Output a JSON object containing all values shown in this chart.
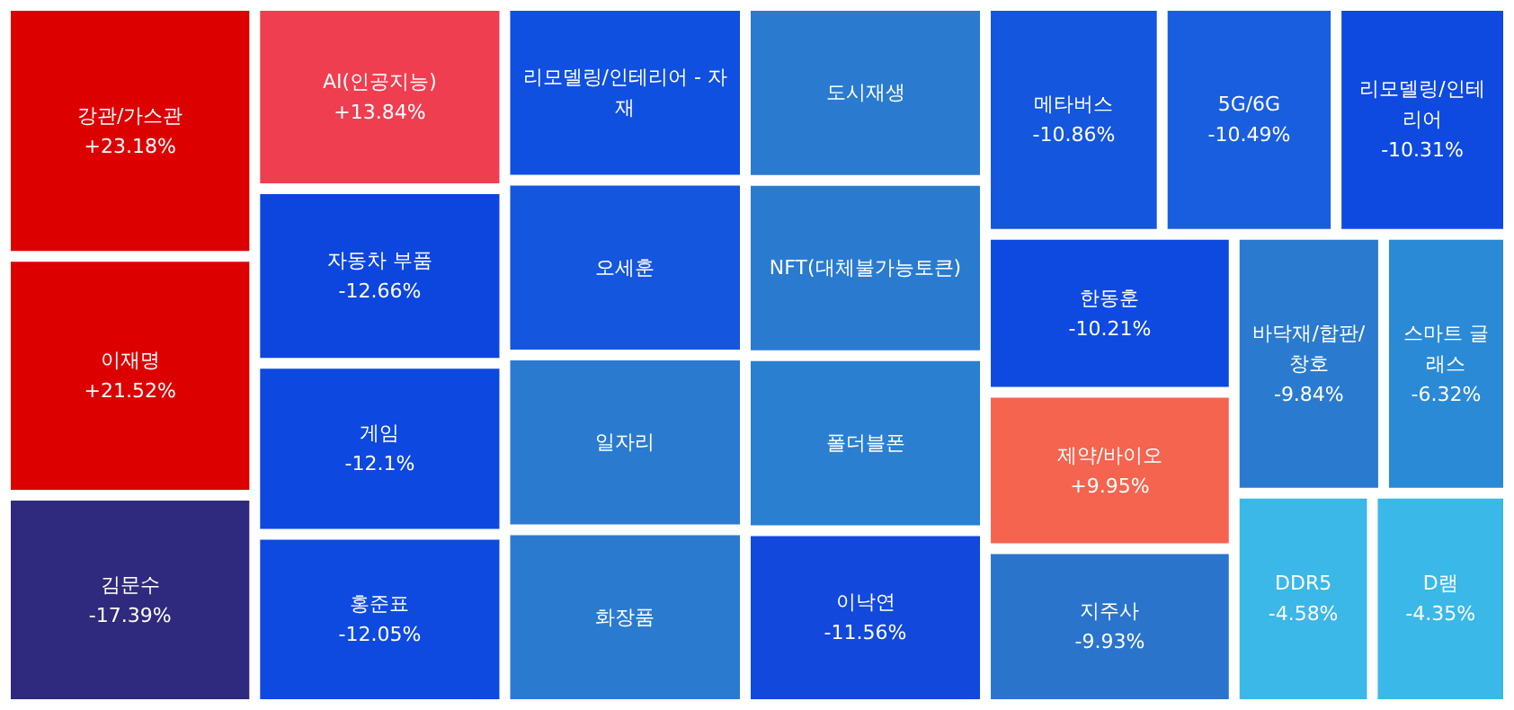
{
  "chart_data": {
    "type": "other",
    "categories": [
      "강관/가스관",
      "이재명",
      "AI(인공지능)",
      "제약/바이오",
      "DDR5",
      "D램",
      "스마트 글래스",
      "폴더블폰",
      "NFT(대체불가능토큰)",
      "도시재생",
      "화장품",
      "일자리",
      "바닥재/합판/창호",
      "지주사",
      "오세훈",
      "5G/6G",
      "메타버스",
      "이낙연",
      "리모델링/인테리어 - 자재",
      "한동훈",
      "리모델링/인테리어",
      "홍준표",
      "게임",
      "자동차 부품",
      "김문수"
    ],
    "values": [
      23.18,
      21.52,
      13.84,
      9.95,
      -4.58,
      -4.35,
      -6.32,
      null,
      null,
      null,
      null,
      null,
      -9.84,
      -9.93,
      null,
      -10.49,
      -10.86,
      -11.56,
      null,
      -10.21,
      -10.31,
      -12.05,
      -12.1,
      -12.66,
      -17.39
    ],
    "value_labels": [
      "+23.18%",
      "+21.52%",
      "+13.84%",
      "+9.95%",
      "-4.58%",
      "-4.35%",
      "-6.32%",
      null,
      null,
      null,
      null,
      null,
      "-9.84%",
      "-9.93%",
      null,
      "-10.49%",
      "-10.86%",
      "-11.56%",
      null,
      "-10.21%",
      "-10.31%",
      "-12.05%",
      "-12.1%",
      "-12.66%",
      "-17.39%"
    ],
    "colors": [
      "#dd0000",
      "#dd0000",
      "#ef3e4f",
      "#f4644f",
      "#3bb7e8",
      "#3ab8e8",
      "#2b8ad6",
      "#2a7fd0",
      "#2a7bcf",
      "#2a7bcf",
      "#2a7bcf",
      "#2a7bcf",
      "#2a7bcf",
      "#2a74cc",
      "#1456dd",
      "#1a5ee0",
      "#1456dd",
      "#1248dc",
      "#1050e0",
      "#0f4ae0",
      "#0f4ae0",
      "#0e4ae0",
      "#0d48e0",
      "#0d46df",
      "#2f2a7d"
    ]
  }
}
